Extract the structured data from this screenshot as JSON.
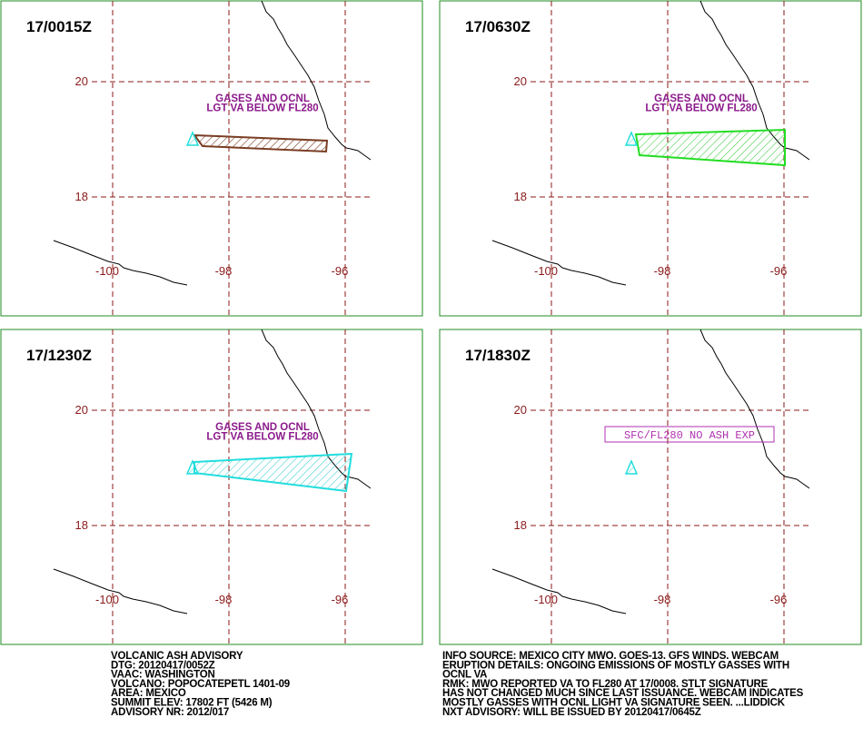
{
  "panels": [
    {
      "time": "17/0015Z",
      "lat_labels": [
        "20",
        "18"
      ],
      "lon_labels": [
        "-100",
        "-98",
        "-96"
      ],
      "annotation": [
        "GASES AND OCNL",
        "LGT VA BELOW FL280"
      ]
    },
    {
      "time": "17/0630Z",
      "lat_labels": [
        "20",
        "18"
      ],
      "lon_labels": [
        "-100",
        "-98",
        "-96"
      ],
      "annotation": [
        "GASES AND OCNL",
        "LGT VA BELOW FL280"
      ]
    },
    {
      "time": "17/1230Z",
      "lat_labels": [
        "20",
        "18"
      ],
      "lon_labels": [
        "-100",
        "-98",
        "-96"
      ],
      "annotation": [
        "GASES AND OCNL",
        "LGT VA BELOW FL280"
      ]
    },
    {
      "time": "17/1830Z",
      "lat_labels": [
        "20",
        "18"
      ],
      "lon_labels": [
        "-100",
        "-98",
        "-96"
      ],
      "box": "SFC/FL280 NO ASH EXP"
    }
  ],
  "advisory_left": [
    "VOLCANIC ASH ADVISORY",
    "DTG: 20120417/0052Z",
    "VAAC: WASHINGTON",
    "VOLCANO: POPOCATEPETL 1401-09",
    "AREA: MEXICO",
    "SUMMIT ELEV: 17802 FT (5426 M)",
    "ADVISORY NR: 2012/017"
  ],
  "advisory_right": [
    "INFO SOURCE: MEXICO CITY MWO. GOES-13. GFS WINDS. WEBCAM",
    "ERUPTION DETAILS: ONGOING EMISSIONS OF MOSTLY GASSES WITH",
    "OCNL VA",
    "RMK: MWO REPORTED VA TO FL280 AT 17/0008. STLT SIGNATURE",
    "HAS NOT CHANGED MUCH SINCE LAST ISSUANCE. WEBCAM INDICATES",
    "MOSTLY GASSES WITH OCNL LIGHT VA SIGNATURE SEEN. ...LIDDICK",
    "NXT ADVISORY: WILL BE ISSUED BY 20120417/0645Z"
  ]
}
